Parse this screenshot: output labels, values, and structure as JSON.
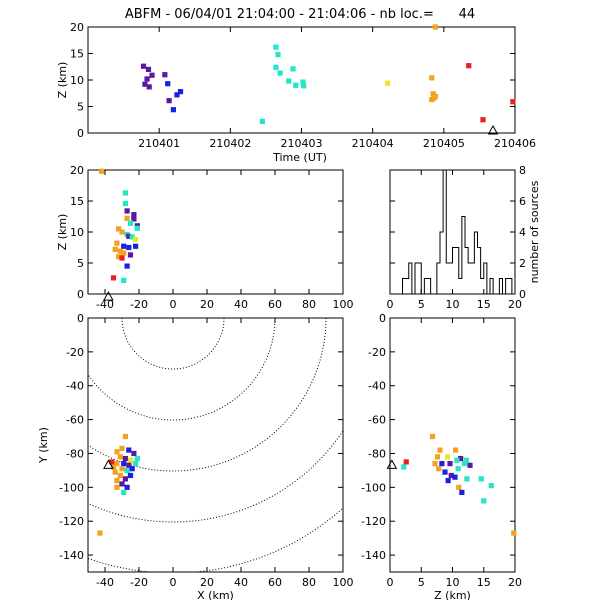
{
  "title": "ABFM - 06/04/01 21:04:00 - 21:04:06 - nb loc.=      44",
  "colors": {
    "purple": "#5a1aa0",
    "blue": "#1a22e0",
    "cyan": "#22e6c8",
    "yellow": "#e8e82a",
    "orange": "#f2a21c",
    "red": "#e82020"
  },
  "chart_data": [
    {
      "name": "time_height",
      "type": "scatter",
      "xlabel": "Time (UT)",
      "ylabel": "Z (km)",
      "xlim": [
        210400.0,
        210406.0
      ],
      "ylim": [
        0,
        20
      ],
      "xticks": [
        "210401",
        "210402",
        "210403",
        "210404",
        "210405",
        "210406"
      ],
      "yticks": [
        0,
        5,
        10,
        15,
        20
      ],
      "points": [
        {
          "x": 210400.78,
          "y": 12.6,
          "c": "purple"
        },
        {
          "x": 210400.85,
          "y": 12.0,
          "c": "purple"
        },
        {
          "x": 210400.83,
          "y": 10.2,
          "c": "purple"
        },
        {
          "x": 210400.9,
          "y": 10.9,
          "c": "purple"
        },
        {
          "x": 210400.8,
          "y": 9.2,
          "c": "purple"
        },
        {
          "x": 210400.86,
          "y": 8.7,
          "c": "purple"
        },
        {
          "x": 210401.08,
          "y": 11.0,
          "c": "purple"
        },
        {
          "x": 210401.12,
          "y": 9.3,
          "c": "blue"
        },
        {
          "x": 210401.14,
          "y": 6.1,
          "c": "purple"
        },
        {
          "x": 210401.25,
          "y": 7.2,
          "c": "blue"
        },
        {
          "x": 210401.3,
          "y": 7.8,
          "c": "blue"
        },
        {
          "x": 210401.2,
          "y": 4.4,
          "c": "blue"
        },
        {
          "x": 210402.45,
          "y": 2.2,
          "c": "cyan"
        },
        {
          "x": 210402.64,
          "y": 16.2,
          "c": "cyan"
        },
        {
          "x": 210402.67,
          "y": 14.8,
          "c": "cyan"
        },
        {
          "x": 210402.64,
          "y": 12.4,
          "c": "cyan"
        },
        {
          "x": 210402.7,
          "y": 11.3,
          "c": "cyan"
        },
        {
          "x": 210402.82,
          "y": 9.8,
          "c": "cyan"
        },
        {
          "x": 210402.92,
          "y": 9.0,
          "c": "cyan"
        },
        {
          "x": 210402.88,
          "y": 12.1,
          "c": "cyan"
        },
        {
          "x": 210403.02,
          "y": 9.6,
          "c": "cyan"
        },
        {
          "x": 210403.03,
          "y": 8.9,
          "c": "cyan"
        },
        {
          "x": 210404.21,
          "y": 9.4,
          "c": "yellow"
        },
        {
          "x": 210404.88,
          "y": 20.0,
          "c": "orange"
        },
        {
          "x": 210404.83,
          "y": 10.4,
          "c": "orange"
        },
        {
          "x": 210404.85,
          "y": 7.4,
          "c": "orange"
        },
        {
          "x": 210404.86,
          "y": 6.6,
          "c": "orange"
        },
        {
          "x": 210404.83,
          "y": 6.3,
          "c": "orange"
        },
        {
          "x": 210404.88,
          "y": 6.9,
          "c": "orange"
        },
        {
          "x": 210405.35,
          "y": 12.7,
          "c": "red"
        },
        {
          "x": 210405.55,
          "y": 2.5,
          "c": "red"
        },
        {
          "x": 210405.97,
          "y": 5.9,
          "c": "red"
        }
      ]
    },
    {
      "name": "x_height",
      "type": "scatter",
      "xlabel": "",
      "ylabel": "Z (km)",
      "xlim": [
        -50,
        100
      ],
      "ylim": [
        0,
        20
      ],
      "xticks": [
        -40,
        -20,
        0,
        20,
        40,
        60,
        80,
        100
      ],
      "yticks": [
        0,
        5,
        10,
        15,
        20
      ],
      "points": [
        {
          "x": -42,
          "y": 19.8,
          "c": "orange"
        },
        {
          "x": -28,
          "y": 16.3,
          "c": "cyan"
        },
        {
          "x": -28,
          "y": 14.6,
          "c": "cyan"
        },
        {
          "x": -27,
          "y": 13.4,
          "c": "purple"
        },
        {
          "x": -23,
          "y": 12.8,
          "c": "purple"
        },
        {
          "x": -27,
          "y": 12.2,
          "c": "orange"
        },
        {
          "x": -23,
          "y": 12.1,
          "c": "purple"
        },
        {
          "x": -25,
          "y": 11.4,
          "c": "cyan"
        },
        {
          "x": -21,
          "y": 11.0,
          "c": "purple"
        },
        {
          "x": -21,
          "y": 10.6,
          "c": "cyan"
        },
        {
          "x": -32,
          "y": 10.5,
          "c": "orange"
        },
        {
          "x": -30,
          "y": 10.0,
          "c": "orange"
        },
        {
          "x": -27,
          "y": 9.6,
          "c": "cyan"
        },
        {
          "x": -26,
          "y": 9.3,
          "c": "purple"
        },
        {
          "x": -24,
          "y": 9.2,
          "c": "cyan"
        },
        {
          "x": -22,
          "y": 8.8,
          "c": "yellow"
        },
        {
          "x": -33,
          "y": 8.2,
          "c": "orange"
        },
        {
          "x": -29,
          "y": 7.7,
          "c": "blue"
        },
        {
          "x": -26,
          "y": 7.5,
          "c": "blue"
        },
        {
          "x": -22,
          "y": 7.7,
          "c": "blue"
        },
        {
          "x": -34,
          "y": 7.2,
          "c": "orange"
        },
        {
          "x": -31,
          "y": 6.9,
          "c": "orange"
        },
        {
          "x": -29,
          "y": 6.6,
          "c": "orange"
        },
        {
          "x": -25,
          "y": 6.3,
          "c": "purple"
        },
        {
          "x": -32,
          "y": 6.0,
          "c": "orange"
        },
        {
          "x": -30,
          "y": 5.8,
          "c": "red"
        },
        {
          "x": -27,
          "y": 4.5,
          "c": "blue"
        },
        {
          "x": -35,
          "y": 2.6,
          "c": "red"
        },
        {
          "x": -29,
          "y": 2.2,
          "c": "cyan"
        }
      ],
      "station": {
        "x": -38,
        "y": -0.5
      }
    },
    {
      "name": "height_histogram",
      "type": "bar",
      "ylabel": "number of sources",
      "xlim": [
        0,
        20
      ],
      "ylim": [
        0,
        8
      ],
      "xticks": [
        0,
        5,
        10,
        15,
        20
      ],
      "yticks": [
        0,
        2,
        4,
        6,
        8
      ],
      "bin_width": 0.5,
      "counts": [
        0,
        0,
        0,
        0,
        1,
        1,
        2,
        0,
        2,
        2,
        0,
        1,
        1,
        0,
        0,
        2,
        4,
        8,
        2,
        2,
        3,
        3,
        1,
        5,
        3,
        2,
        2,
        4,
        3,
        1,
        2,
        0,
        1,
        0,
        0,
        1,
        0,
        1,
        1,
        0
      ]
    },
    {
      "name": "plan_view",
      "type": "scatter",
      "xlabel": "X (km)",
      "ylabel": "Y (km)",
      "xlim": [
        -50,
        100
      ],
      "ylim": [
        -150,
        0
      ],
      "xticks": [
        -40,
        -20,
        0,
        20,
        40,
        60,
        80,
        100
      ],
      "yticks": [
        -140,
        -120,
        -100,
        -80,
        -60,
        -40,
        -20,
        0
      ],
      "range_rings_km": [
        30,
        60,
        90,
        120,
        150
      ],
      "points": [
        {
          "x": -28,
          "y": -70,
          "c": "orange"
        },
        {
          "x": -30,
          "y": -77,
          "c": "orange"
        },
        {
          "x": -33,
          "y": -79,
          "c": "orange"
        },
        {
          "x": -26,
          "y": -78,
          "c": "blue"
        },
        {
          "x": -23,
          "y": -80,
          "c": "purple"
        },
        {
          "x": -31,
          "y": -82,
          "c": "orange"
        },
        {
          "x": -28,
          "y": -83,
          "c": "purple"
        },
        {
          "x": -25,
          "y": -84,
          "c": "yellow"
        },
        {
          "x": -21,
          "y": -83,
          "c": "cyan"
        },
        {
          "x": -36,
          "y": -85,
          "c": "red"
        },
        {
          "x": -33,
          "y": -86,
          "c": "orange"
        },
        {
          "x": -29,
          "y": -86,
          "c": "blue"
        },
        {
          "x": -26,
          "y": -87,
          "c": "purple"
        },
        {
          "x": -22,
          "y": -86,
          "c": "cyan"
        },
        {
          "x": -35,
          "y": -88,
          "c": "orange"
        },
        {
          "x": -30,
          "y": -89,
          "c": "orange"
        },
        {
          "x": -27,
          "y": -90,
          "c": "cyan"
        },
        {
          "x": -24,
          "y": -89,
          "c": "blue"
        },
        {
          "x": -34,
          "y": -91,
          "c": "orange"
        },
        {
          "x": -31,
          "y": -93,
          "c": "orange"
        },
        {
          "x": -28,
          "y": -95,
          "c": "purple"
        },
        {
          "x": -25,
          "y": -93,
          "c": "blue"
        },
        {
          "x": -33,
          "y": -96,
          "c": "orange"
        },
        {
          "x": -30,
          "y": -98,
          "c": "purple"
        },
        {
          "x": -27,
          "y": -100,
          "c": "blue"
        },
        {
          "x": -29,
          "y": -103,
          "c": "cyan"
        },
        {
          "x": -33,
          "y": -100,
          "c": "orange"
        },
        {
          "x": -43,
          "y": -127,
          "c": "orange"
        }
      ],
      "station": {
        "x": -38,
        "y": -87
      }
    },
    {
      "name": "height_y",
      "type": "scatter",
      "xlabel": "Z (km)",
      "ylabel": "",
      "xlim": [
        0,
        20
      ],
      "ylim": [
        -150,
        0
      ],
      "xticks": [
        0,
        5,
        10,
        15,
        20
      ],
      "yticks": [
        -140,
        -120,
        -100,
        -80,
        -60,
        -40,
        -20,
        0
      ],
      "points": [
        {
          "x": 6.8,
          "y": -70,
          "c": "orange"
        },
        {
          "x": 8.0,
          "y": -78,
          "c": "orange"
        },
        {
          "x": 10.5,
          "y": -78,
          "c": "orange"
        },
        {
          "x": 7.6,
          "y": -82,
          "c": "orange"
        },
        {
          "x": 9.2,
          "y": -82,
          "c": "yellow"
        },
        {
          "x": 11.3,
          "y": -83,
          "c": "purple"
        },
        {
          "x": 10.7,
          "y": -84,
          "c": "cyan"
        },
        {
          "x": 12.2,
          "y": -84,
          "c": "cyan"
        },
        {
          "x": 2.6,
          "y": -85,
          "c": "red"
        },
        {
          "x": 7.2,
          "y": -86,
          "c": "orange"
        },
        {
          "x": 8.3,
          "y": -86,
          "c": "blue"
        },
        {
          "x": 9.6,
          "y": -86,
          "c": "purple"
        },
        {
          "x": 11.9,
          "y": -86,
          "c": "cyan"
        },
        {
          "x": 12.8,
          "y": -87,
          "c": "purple"
        },
        {
          "x": 2.2,
          "y": -88,
          "c": "cyan"
        },
        {
          "x": 7.8,
          "y": -89,
          "c": "orange"
        },
        {
          "x": 10.9,
          "y": -89,
          "c": "cyan"
        },
        {
          "x": 8.8,
          "y": -91,
          "c": "blue"
        },
        {
          "x": 9.8,
          "y": -93,
          "c": "purple"
        },
        {
          "x": 10.4,
          "y": -94,
          "c": "blue"
        },
        {
          "x": 9.3,
          "y": -96,
          "c": "blue"
        },
        {
          "x": 12.3,
          "y": -95,
          "c": "cyan"
        },
        {
          "x": 14.6,
          "y": -95,
          "c": "cyan"
        },
        {
          "x": 16.2,
          "y": -99,
          "c": "cyan"
        },
        {
          "x": 11.0,
          "y": -100,
          "c": "orange"
        },
        {
          "x": 11.5,
          "y": -103,
          "c": "blue"
        },
        {
          "x": 15.0,
          "y": -108,
          "c": "cyan"
        },
        {
          "x": 19.8,
          "y": -127,
          "c": "orange"
        }
      ],
      "station": {
        "x": 0.3,
        "y": -87
      }
    }
  ]
}
